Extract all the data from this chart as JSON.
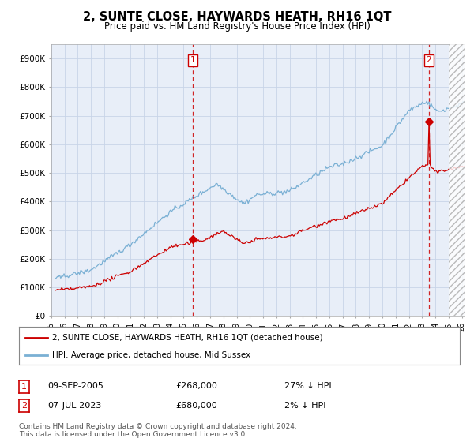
{
  "title": "2, SUNTE CLOSE, HAYWARDS HEATH, RH16 1QT",
  "subtitle": "Price paid vs. HM Land Registry's House Price Index (HPI)",
  "ylabel_ticks": [
    "£0",
    "£100K",
    "£200K",
    "£300K",
    "£400K",
    "£500K",
    "£600K",
    "£700K",
    "£800K",
    "£900K"
  ],
  "ytick_values": [
    0,
    100000,
    200000,
    300000,
    400000,
    500000,
    600000,
    700000,
    800000,
    900000
  ],
  "ylim": [
    0,
    950000
  ],
  "xlim_start": 1995.3,
  "xlim_end": 2026.2,
  "hpi_color": "#7ab0d4",
  "price_color": "#cc0000",
  "marker1_date": 2005.7,
  "marker1_price": 268000,
  "marker2_date": 2023.52,
  "marker2_price": 680000,
  "legend_label1": "2, SUNTE CLOSE, HAYWARDS HEATH, RH16 1QT (detached house)",
  "legend_label2": "HPI: Average price, detached house, Mid Sussex",
  "annotation1_date": "09-SEP-2005",
  "annotation1_price": "£268,000",
  "annotation1_hpi": "27% ↓ HPI",
  "annotation2_date": "07-JUL-2023",
  "annotation2_price": "£680,000",
  "annotation2_hpi": "2% ↓ HPI",
  "footer": "Contains HM Land Registry data © Crown copyright and database right 2024.\nThis data is licensed under the Open Government Licence v3.0.",
  "bg_color": "#ffffff",
  "grid_color": "#c8d4e8",
  "plot_bg_color": "#e8eef8",
  "hatch_start": 2025.0
}
